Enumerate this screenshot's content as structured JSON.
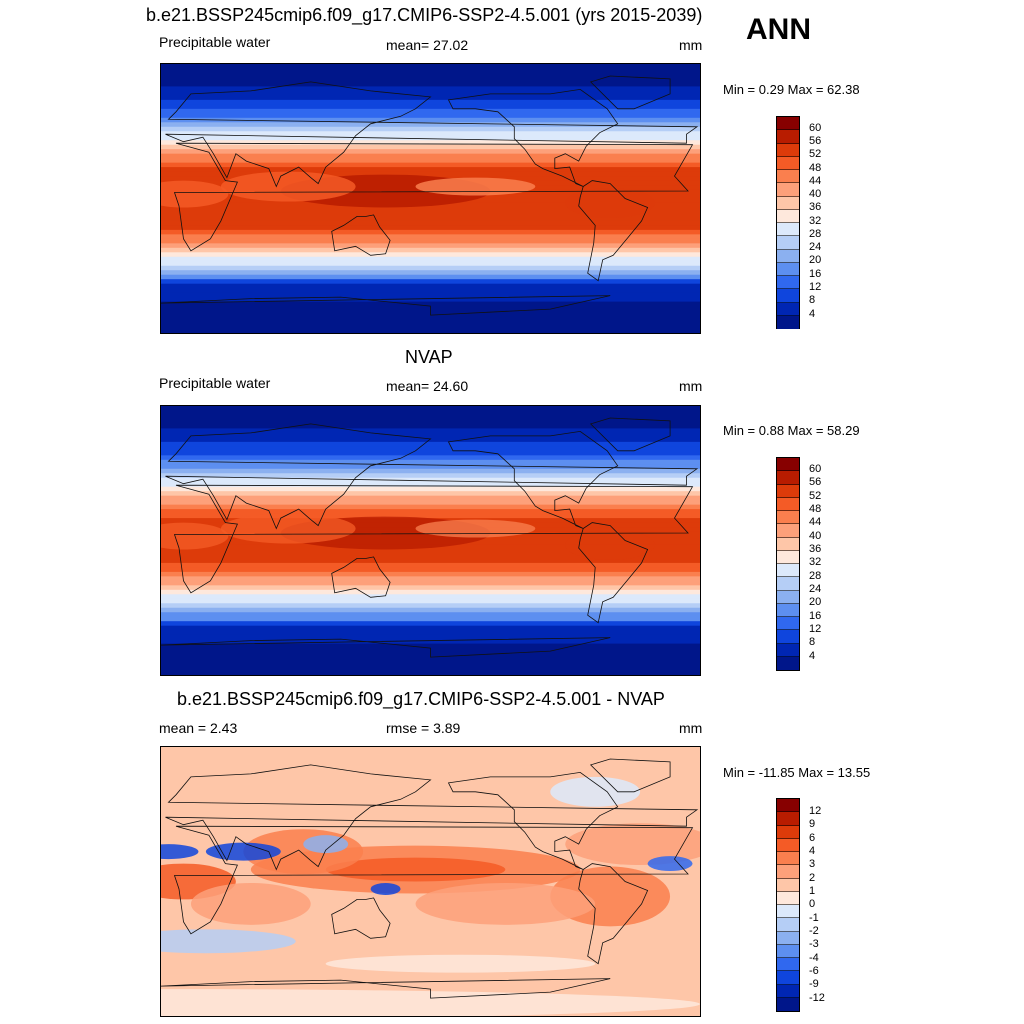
{
  "season": "ANN",
  "panels": [
    {
      "title": "b.e21.BSSP245cmip6.f09_g17.CMIP6-SSP2-4.5.001 (yrs 2015-2039)",
      "left_label": "Precipitable water",
      "center_label": "mean=  27.02",
      "units": "mm",
      "minmax": "Min =   0.29 Max =  62.38",
      "kind": "field",
      "intensity": 1.0,
      "colorbar_ticks": [
        "60",
        "56",
        "52",
        "48",
        "44",
        "40",
        "36",
        "32",
        "28",
        "24",
        "20",
        "16",
        "12",
        "8",
        "4"
      ]
    },
    {
      "title": "NVAP",
      "left_label": "Precipitable water",
      "center_label": "mean=  24.60",
      "units": "mm",
      "minmax": "Min =   0.88 Max =  58.29",
      "kind": "field",
      "intensity": 0.9,
      "colorbar_ticks": [
        "60",
        "56",
        "52",
        "48",
        "44",
        "40",
        "36",
        "32",
        "28",
        "24",
        "20",
        "16",
        "12",
        "8",
        "4"
      ]
    },
    {
      "title": "b.e21.BSSP245cmip6.f09_g17.CMIP6-SSP2-4.5.001 - NVAP",
      "left_label": "mean =   2.43",
      "center_label": "rmse =   3.89",
      "units": "mm",
      "minmax": "Min = -11.85 Max =  13.55",
      "kind": "diff",
      "intensity": 1.0,
      "colorbar_ticks": [
        "12",
        "9",
        "6",
        "4",
        "3",
        "2",
        "1",
        "0",
        "-1",
        "-2",
        "-3",
        "-4",
        "-6",
        "-9",
        "-12"
      ]
    }
  ],
  "palette": [
    "#870000",
    "#b81c00",
    "#dd3b0a",
    "#f45b26",
    "#fa7f4e",
    "#fda07a",
    "#fec6a8",
    "#fee8dc",
    "#dce9fb",
    "#b5cef6",
    "#8bb0f0",
    "#5d8ff0",
    "#3068ef",
    "#0f45dd",
    "#0026b3",
    "#00168a"
  ]
}
